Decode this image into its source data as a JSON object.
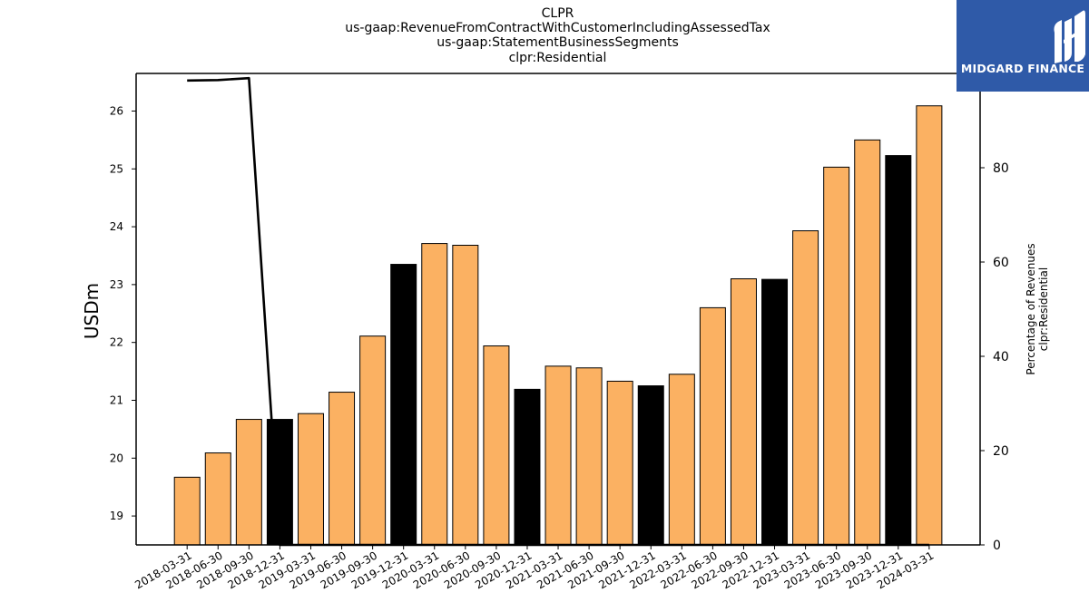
{
  "header": {
    "lines": [
      "CLPR",
      "us-gaap:RevenueFromContractWithCustomerIncludingAssessedTax",
      "us-gaap:StatementBusinessSegments",
      "clpr:Residential"
    ]
  },
  "logo": {
    "text": "MIDGARD FINANCE",
    "bg_color": "#2f5aa8"
  },
  "chart_data": {
    "type": "bar",
    "title": "CLPR",
    "ylabel": "USDm",
    "y2label_line1": "Percentage of Revenues",
    "y2label_line2": "clpr:Residential",
    "ylim": [
      18.5,
      26.65
    ],
    "y2lim": [
      0,
      100
    ],
    "yticks": [
      19,
      20,
      21,
      22,
      23,
      24,
      25,
      26
    ],
    "y2ticks": [
      0,
      20,
      40,
      60,
      80,
      100
    ],
    "categories": [
      "2018-03-31",
      "2018-06-30",
      "2018-09-30",
      "2018-12-31",
      "2019-03-31",
      "2019-06-30",
      "2019-09-30",
      "2019-12-31",
      "2020-03-31",
      "2020-06-30",
      "2020-09-30",
      "2020-12-31",
      "2021-03-31",
      "2021-06-30",
      "2021-09-30",
      "2021-12-31",
      "2022-03-31",
      "2022-06-30",
      "2022-09-30",
      "2022-12-31",
      "2023-03-31",
      "2023-06-30",
      "2023-09-30",
      "2023-12-31",
      "2024-03-31"
    ],
    "values": [
      19.67,
      20.09,
      20.67,
      20.67,
      20.77,
      21.14,
      22.11,
      23.35,
      23.71,
      23.68,
      21.94,
      21.19,
      21.59,
      21.56,
      21.33,
      21.25,
      21.45,
      22.6,
      23.1,
      23.09,
      23.93,
      25.03,
      25.5,
      25.23,
      26.09
    ],
    "bar_colors": [
      "#fbb162",
      "#fbb162",
      "#fbb162",
      "#000000",
      "#fbb162",
      "#fbb162",
      "#fbb162",
      "#000000",
      "#fbb162",
      "#fbb162",
      "#fbb162",
      "#000000",
      "#fbb162",
      "#fbb162",
      "#fbb162",
      "#000000",
      "#fbb162",
      "#fbb162",
      "#fbb162",
      "#000000",
      "#fbb162",
      "#fbb162",
      "#fbb162",
      "#000000",
      "#fbb162"
    ],
    "line_series": {
      "name": "Percentage of Revenues",
      "axis": "right",
      "values": [
        98.5,
        98.6,
        99.0,
        0,
        0,
        0,
        0,
        0,
        0,
        0,
        0,
        0,
        0,
        0,
        0,
        0,
        0,
        0,
        0,
        0,
        0,
        0,
        0,
        0,
        0
      ],
      "color": "#000000"
    },
    "grid": false
  }
}
